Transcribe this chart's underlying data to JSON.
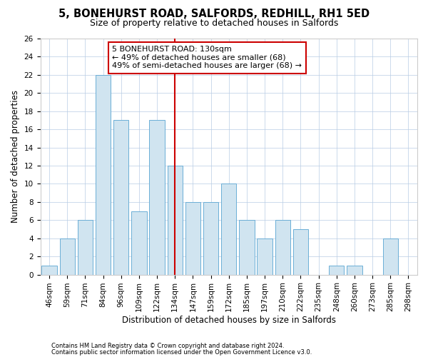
{
  "title1": "5, BONEHURST ROAD, SALFORDS, REDHILL, RH1 5ED",
  "title2": "Size of property relative to detached houses in Salfords",
  "xlabel": "Distribution of detached houses by size in Salfords",
  "ylabel": "Number of detached properties",
  "categories": [
    "46sqm",
    "59sqm",
    "71sqm",
    "84sqm",
    "96sqm",
    "109sqm",
    "122sqm",
    "134sqm",
    "147sqm",
    "159sqm",
    "172sqm",
    "185sqm",
    "197sqm",
    "210sqm",
    "222sqm",
    "235sqm",
    "248sqm",
    "260sqm",
    "273sqm",
    "285sqm",
    "298sqm"
  ],
  "values": [
    1,
    4,
    6,
    22,
    17,
    7,
    17,
    12,
    8,
    8,
    10,
    6,
    4,
    6,
    5,
    0,
    1,
    1,
    0,
    4,
    0
  ],
  "bar_color": "#d0e4f0",
  "bar_edge_color": "#6baed6",
  "reference_line_label": "5 BONEHURST ROAD: 130sqm",
  "annotation_line1": "← 49% of detached houses are smaller (68)",
  "annotation_line2": "49% of semi-detached houses are larger (68) →",
  "annotation_box_edge": "#cc0000",
  "vline_color": "#cc0000",
  "ylim": [
    0,
    26
  ],
  "yticks": [
    0,
    2,
    4,
    6,
    8,
    10,
    12,
    14,
    16,
    18,
    20,
    22,
    24,
    26
  ],
  "footer1": "Contains HM Land Registry data © Crown copyright and database right 2024.",
  "footer2": "Contains public sector information licensed under the Open Government Licence v3.0.",
  "bg_color": "#ffffff",
  "grid_color": "#b8cce4",
  "title1_fontsize": 10.5,
  "title2_fontsize": 9,
  "tick_fontsize": 7.5,
  "label_fontsize": 8.5,
  "annot_fontsize": 8,
  "footer_fontsize": 6
}
